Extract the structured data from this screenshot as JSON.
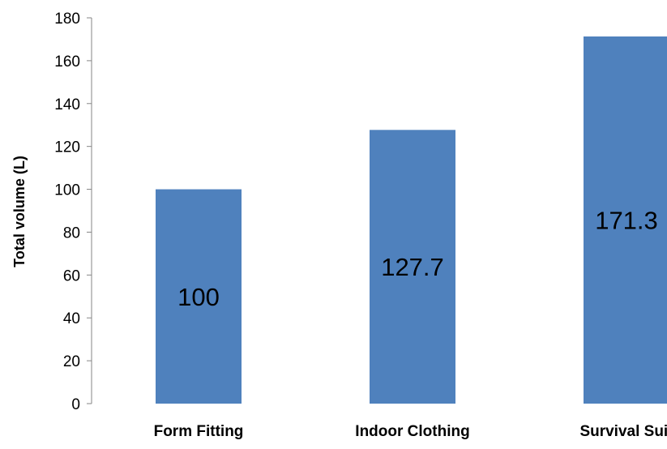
{
  "chart_data": {
    "type": "bar",
    "title": "",
    "xlabel": "",
    "ylabel": "Total volume (L)",
    "categories": [
      "Form Fitting",
      "Indoor Clothing",
      "Survival Suit"
    ],
    "values": [
      100,
      127.7,
      171.3
    ],
    "data_labels": [
      "100",
      "127.7",
      "171.3"
    ],
    "ylim": [
      0,
      180
    ],
    "yticks": [
      0,
      20,
      40,
      60,
      80,
      100,
      120,
      140,
      160,
      180
    ],
    "grid": false,
    "legend": "none",
    "bar_color": "#4F81BD"
  }
}
